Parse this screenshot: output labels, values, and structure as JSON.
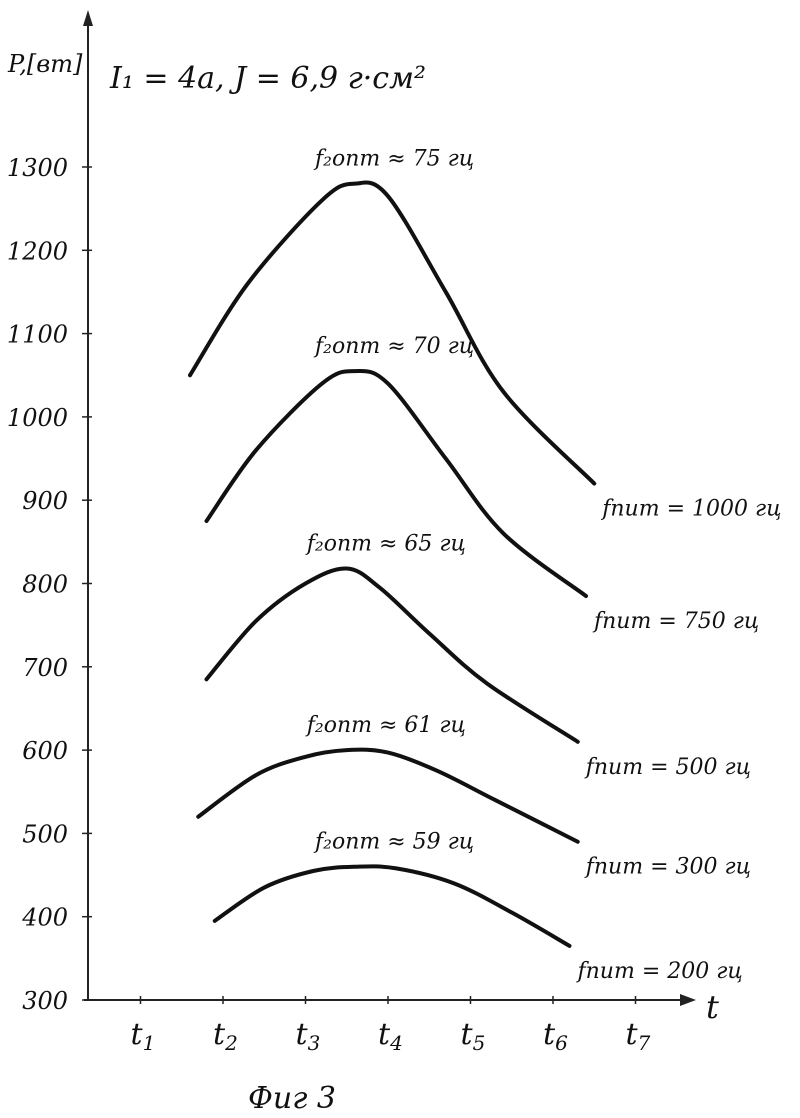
{
  "chart_data": {
    "type": "line",
    "ylabel": "P,[вт]",
    "xlabel": "t",
    "annotation": "I₁ = 4а, J = 6,9 г·см²",
    "caption": "Фиг 3",
    "ylim": [
      300,
      1400
    ],
    "y_ticks": [
      300,
      400,
      500,
      600,
      700,
      800,
      900,
      1000,
      1100,
      1200,
      1300
    ],
    "y_tick_labels": [
      "300",
      "400",
      "500",
      "600",
      "700",
      "800",
      "900",
      "1000",
      "1100",
      "1200",
      "1300"
    ],
    "x_ticks": [
      "t1",
      "t2",
      "t3",
      "t4",
      "t5",
      "t6",
      "t7"
    ],
    "x_tick_labels": [
      {
        "base": "t",
        "sub": "1"
      },
      {
        "base": "t",
        "sub": "2"
      },
      {
        "base": "t",
        "sub": "3"
      },
      {
        "base": "t",
        "sub": "4"
      },
      {
        "base": "t",
        "sub": "5"
      },
      {
        "base": "t",
        "sub": "6"
      },
      {
        "base": "t",
        "sub": "7"
      }
    ],
    "grid": false,
    "series": [
      {
        "name": "fпит = 1000 гц",
        "peak_label": "f₂опт ≈ 75 гц",
        "x": [
          1.6,
          2.3,
          3.2,
          3.6,
          4.0,
          4.7,
          5.4,
          6.5
        ],
        "y": [
          1050,
          1160,
          1260,
          1280,
          1265,
          1150,
          1030,
          920
        ]
      },
      {
        "name": "fпит = 750 гц",
        "peak_label": "f₂опт ≈ 70 гц",
        "x": [
          1.8,
          2.4,
          3.2,
          3.6,
          4.0,
          4.7,
          5.4,
          6.4
        ],
        "y": [
          875,
          960,
          1040,
          1055,
          1040,
          950,
          860,
          785
        ]
      },
      {
        "name": "fпит = 500 гц",
        "peak_label": "f₂опт ≈ 65 гц",
        "x": [
          1.8,
          2.4,
          3.0,
          3.5,
          3.9,
          4.5,
          5.2,
          6.3
        ],
        "y": [
          685,
          755,
          800,
          818,
          795,
          740,
          680,
          610
        ]
      },
      {
        "name": "fпит = 300 гц",
        "peak_label": "f₂опт ≈ 61 гц",
        "x": [
          1.7,
          2.4,
          3.0,
          3.5,
          4.0,
          4.6,
          5.3,
          6.3
        ],
        "y": [
          520,
          570,
          592,
          600,
          597,
          575,
          540,
          490
        ]
      },
      {
        "name": "fпит = 200 гц",
        "peak_label": "f₂опт ≈ 59 гц",
        "x": [
          1.9,
          2.5,
          3.1,
          3.6,
          4.1,
          4.8,
          5.5,
          6.2
        ],
        "y": [
          395,
          435,
          455,
          460,
          458,
          440,
          405,
          365
        ]
      }
    ]
  }
}
